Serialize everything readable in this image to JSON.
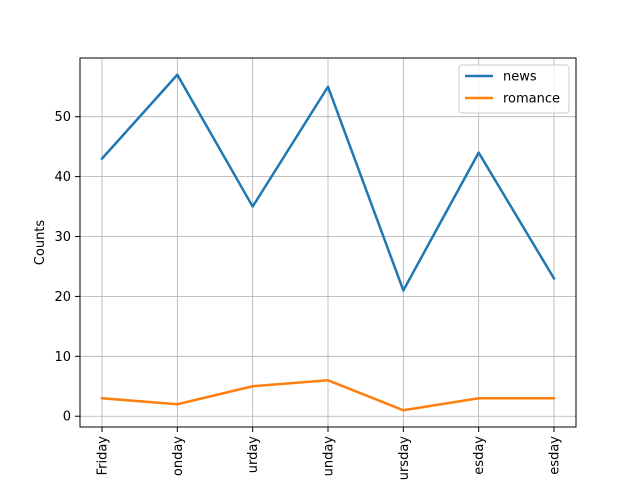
{
  "chart_data": {
    "type": "line",
    "categories": [
      "Friday",
      "Monday",
      "Saturday",
      "Sunday",
      "Thursday",
      "Tuesday",
      "Wednesday"
    ],
    "category_labels_visible": [
      "Friday",
      "onday",
      "urday",
      "unday",
      "ursday",
      "esday",
      "esday"
    ],
    "series": [
      {
        "name": "news",
        "color": "#1f77b4",
        "values": [
          43,
          57,
          35,
          55,
          21,
          44,
          23
        ]
      },
      {
        "name": "romance",
        "color": "#ff7f0e",
        "values": [
          3,
          2,
          5,
          6,
          1,
          3,
          3
        ]
      }
    ],
    "title": "",
    "xlabel": "",
    "ylabel": "Counts",
    "ylim": [
      -1.8,
      59.8
    ],
    "yticks": [
      0,
      10,
      20,
      30,
      40,
      50
    ],
    "grid": true,
    "legend_position": "top-right"
  }
}
